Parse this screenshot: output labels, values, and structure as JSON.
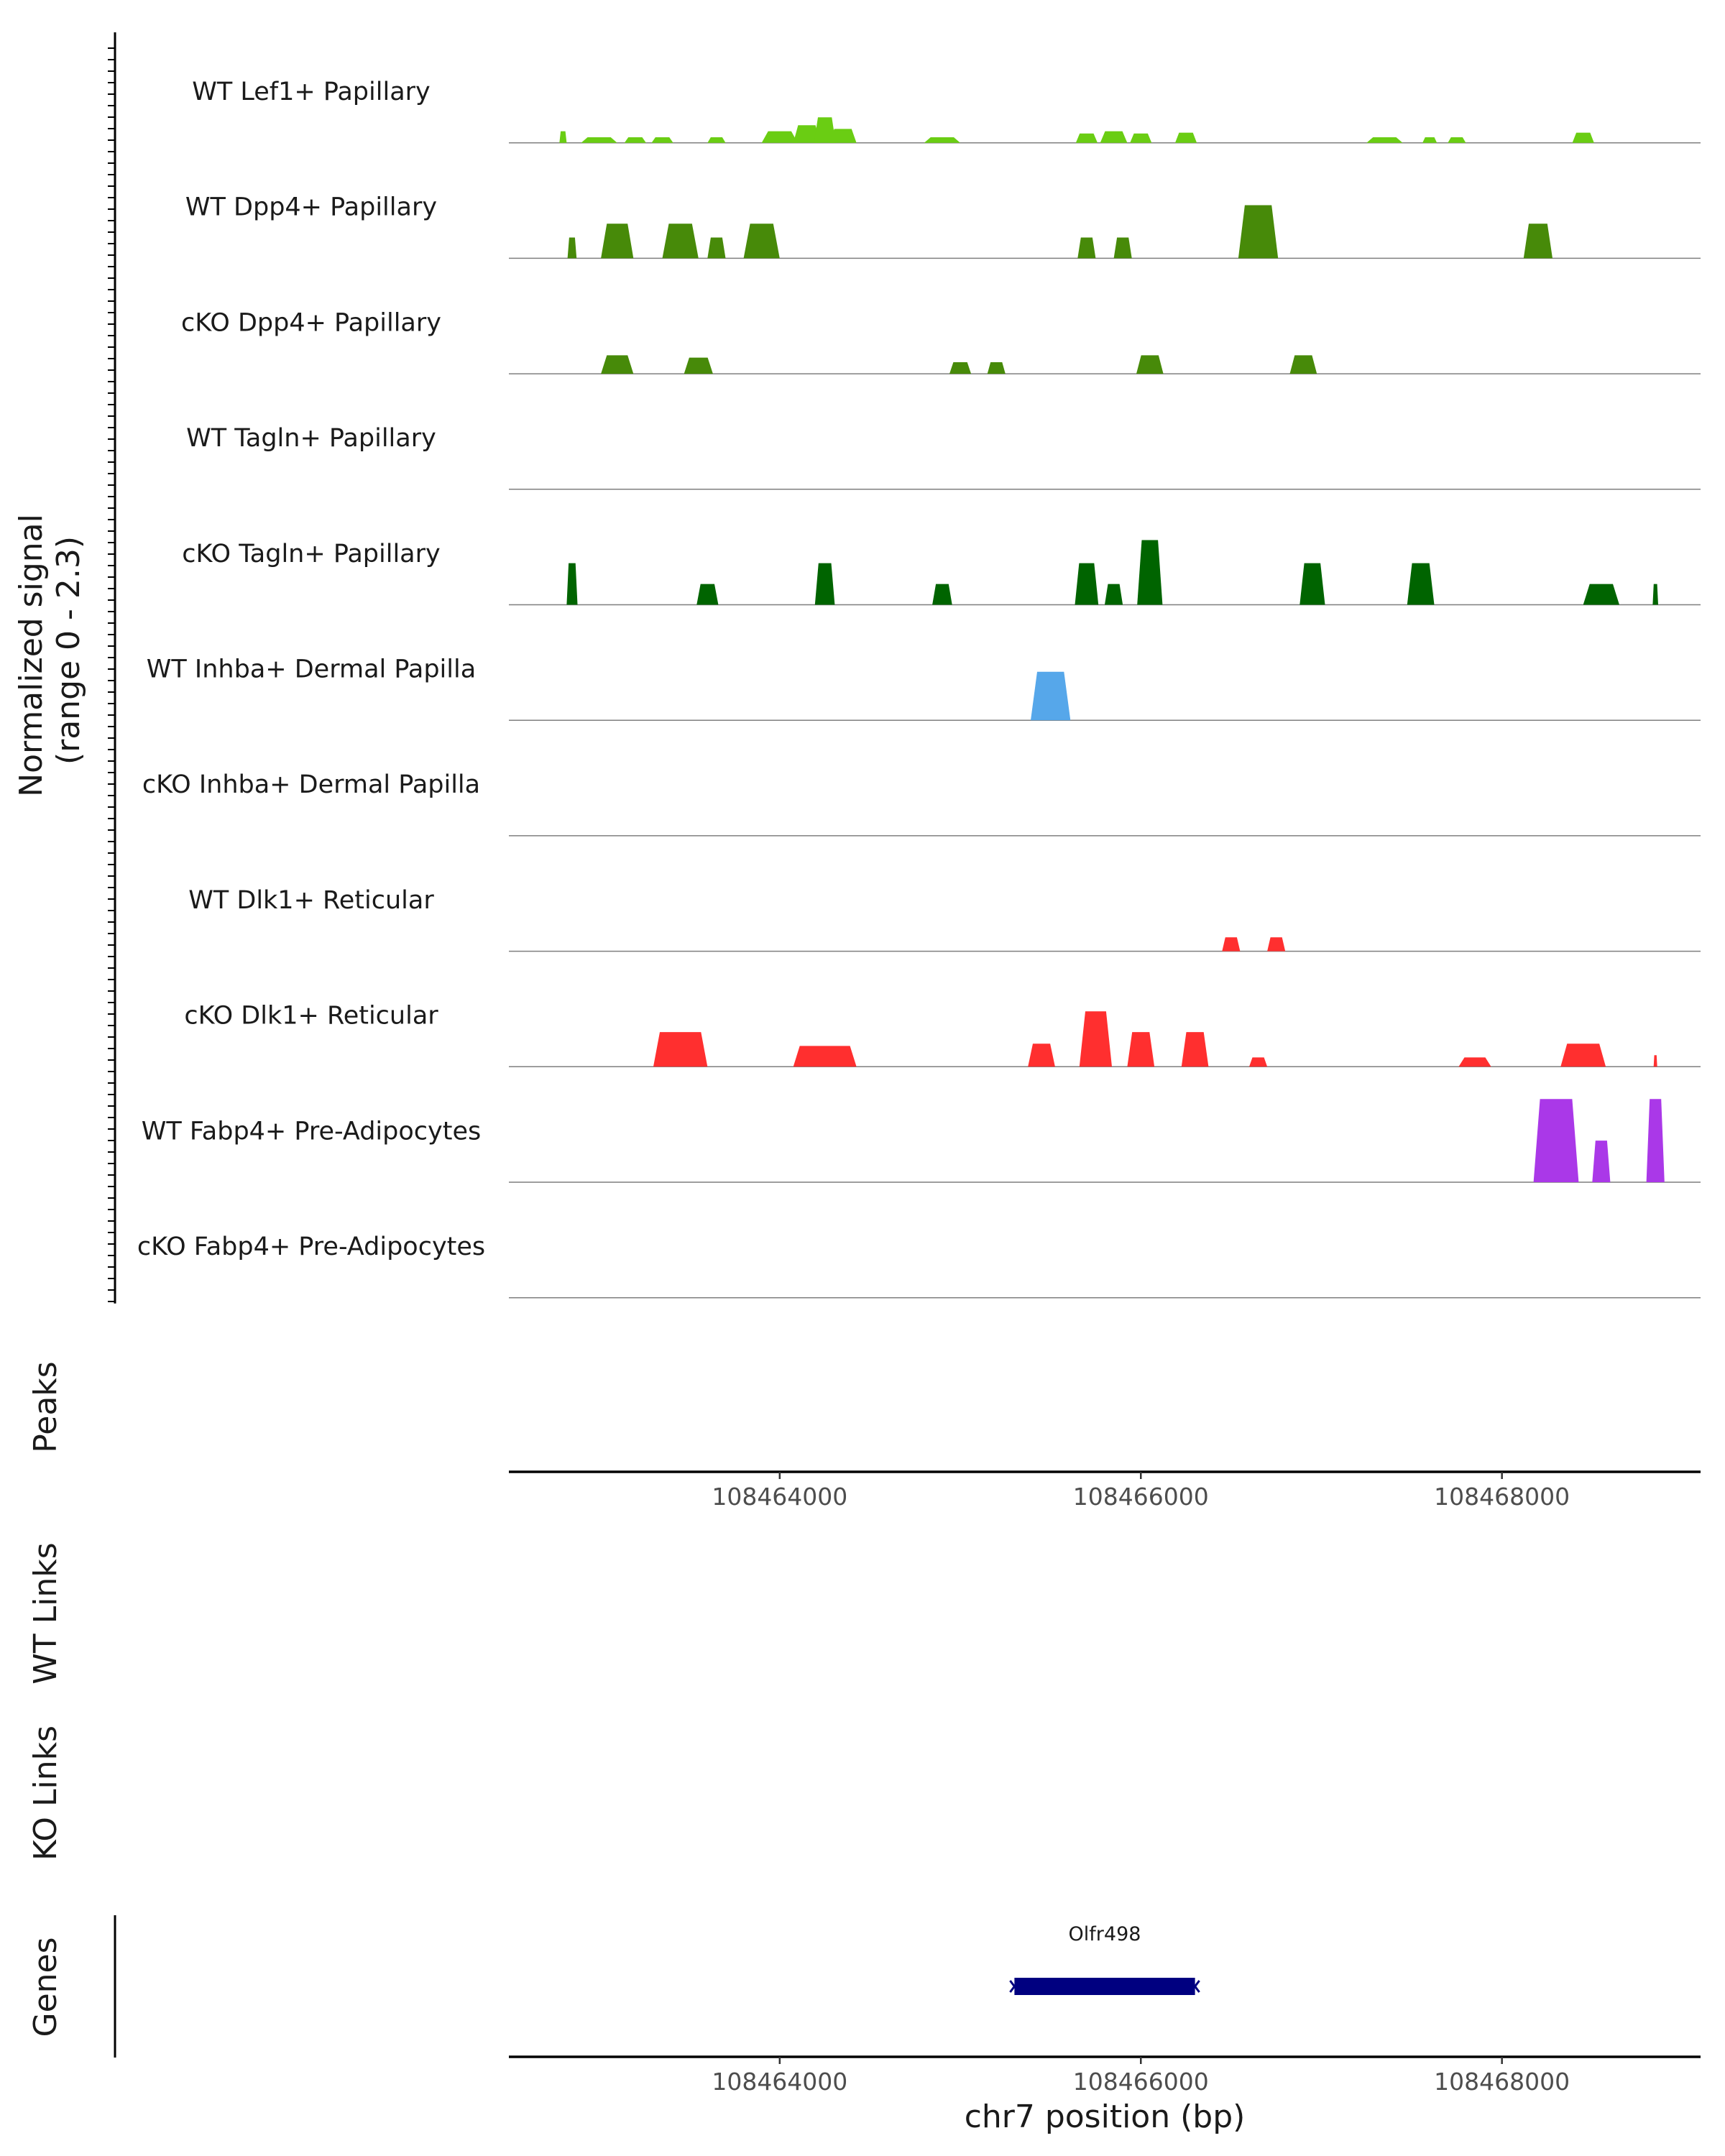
{
  "chart_data": {
    "type": "area",
    "title": "",
    "xlabel": "chr7 position (bp)",
    "ylabel": "Normalized signal\n(range 0 - 2.3)",
    "ylabel_lines": [
      "Normalized signal",
      "(range 0 - 2.3)"
    ],
    "ylim": [
      0,
      2.3
    ],
    "xlim": [
      108462500,
      108469100
    ],
    "x_ticks": [
      108464000,
      108466000,
      108468000
    ],
    "x_tick_labels": [
      "108464000",
      "108466000",
      "108468000"
    ],
    "tracks": [
      {
        "name": "WT Lef1+ Papillary",
        "color": "#6ACD13",
        "peaks": [
          [
            108462800,
            0.25,
            40
          ],
          [
            108463000,
            0.12,
            200
          ],
          [
            108463200,
            0.12,
            120
          ],
          [
            108463350,
            0.12,
            120
          ],
          [
            108463650,
            0.12,
            100
          ],
          [
            108464000,
            0.25,
            200
          ],
          [
            108464150,
            0.38,
            150
          ],
          [
            108464250,
            0.55,
            120
          ],
          [
            108464350,
            0.3,
            150
          ],
          [
            108464900,
            0.12,
            200
          ],
          [
            108465700,
            0.2,
            120
          ],
          [
            108465850,
            0.25,
            150
          ],
          [
            108466000,
            0.2,
            120
          ],
          [
            108466250,
            0.22,
            120
          ],
          [
            108467350,
            0.12,
            200
          ],
          [
            108467600,
            0.12,
            80
          ],
          [
            108467750,
            0.12,
            100
          ],
          [
            108468450,
            0.22,
            120
          ]
        ]
      },
      {
        "name": "WT Dpp4+ Papillary",
        "color": "#478A09",
        "peaks": [
          [
            108462850,
            0.45,
            50
          ],
          [
            108463100,
            0.75,
            180
          ],
          [
            108463450,
            0.75,
            200
          ],
          [
            108463650,
            0.45,
            100
          ],
          [
            108463900,
            0.75,
            200
          ],
          [
            108465700,
            0.45,
            100
          ],
          [
            108465900,
            0.45,
            100
          ],
          [
            108466650,
            1.15,
            220
          ],
          [
            108468200,
            0.75,
            160
          ]
        ]
      },
      {
        "name": "cKO Dpp4+ Papillary",
        "color": "#478A09",
        "peaks": [
          [
            108463100,
            0.4,
            180
          ],
          [
            108463550,
            0.35,
            160
          ],
          [
            108465000,
            0.25,
            120
          ],
          [
            108465200,
            0.25,
            100
          ],
          [
            108466050,
            0.4,
            150
          ],
          [
            108466900,
            0.4,
            150
          ]
        ]
      },
      {
        "name": "WT Tagln+ Papillary",
        "color": "#006400",
        "peaks": []
      },
      {
        "name": "cKO Tagln+ Papillary",
        "color": "#006400",
        "peaks": [
          [
            108462850,
            0.9,
            60
          ],
          [
            108463600,
            0.45,
            120
          ],
          [
            108464250,
            0.9,
            110
          ],
          [
            108464900,
            0.45,
            110
          ],
          [
            108465700,
            0.9,
            130
          ],
          [
            108465850,
            0.45,
            100
          ],
          [
            108466050,
            1.4,
            140
          ],
          [
            108466950,
            0.9,
            140
          ],
          [
            108467550,
            0.9,
            150
          ],
          [
            108468550,
            0.45,
            200
          ],
          [
            108468850,
            0.45,
            30
          ]
        ]
      },
      {
        "name": "WT Inhba+ Dermal Papilla",
        "color": "#56A7EA",
        "peaks": [
          [
            108465500,
            1.05,
            220
          ]
        ]
      },
      {
        "name": "cKO Inhba+ Dermal Papilla",
        "color": "#56A7EA",
        "peaks": []
      },
      {
        "name": "WT Dlk1+ Reticular",
        "color": "#FF2F2F",
        "peaks": [
          [
            108466500,
            0.3,
            100
          ],
          [
            108466750,
            0.3,
            100
          ]
        ]
      },
      {
        "name": "cKO Dlk1+ Reticular",
        "color": "#FF2F2F",
        "peaks": [
          [
            108463450,
            0.75,
            300
          ],
          [
            108464250,
            0.45,
            350
          ],
          [
            108465450,
            0.5,
            150
          ],
          [
            108465750,
            1.2,
            180
          ],
          [
            108466000,
            0.75,
            150
          ],
          [
            108466300,
            0.75,
            150
          ],
          [
            108466650,
            0.2,
            100
          ],
          [
            108467850,
            0.2,
            180
          ],
          [
            108468450,
            0.5,
            250
          ],
          [
            108468850,
            0.25,
            20
          ]
        ]
      },
      {
        "name": "WT Fabp4+ Pre-Adipocytes",
        "color": "#AA38E8",
        "peaks": [
          [
            108468300,
            1.8,
            250
          ],
          [
            108468550,
            0.9,
            100
          ],
          [
            108468850,
            1.8,
            100
          ]
        ]
      },
      {
        "name": "cKO Fabp4+ Pre-Adipocytes",
        "color": "#AA38E8",
        "peaks": []
      }
    ],
    "panels": [
      "Peaks",
      "WT Links",
      "KO Links",
      "Genes"
    ],
    "genes": [
      {
        "name": "Olfr498",
        "start": 108465300,
        "end": 108466300,
        "color": "#000080"
      }
    ]
  }
}
